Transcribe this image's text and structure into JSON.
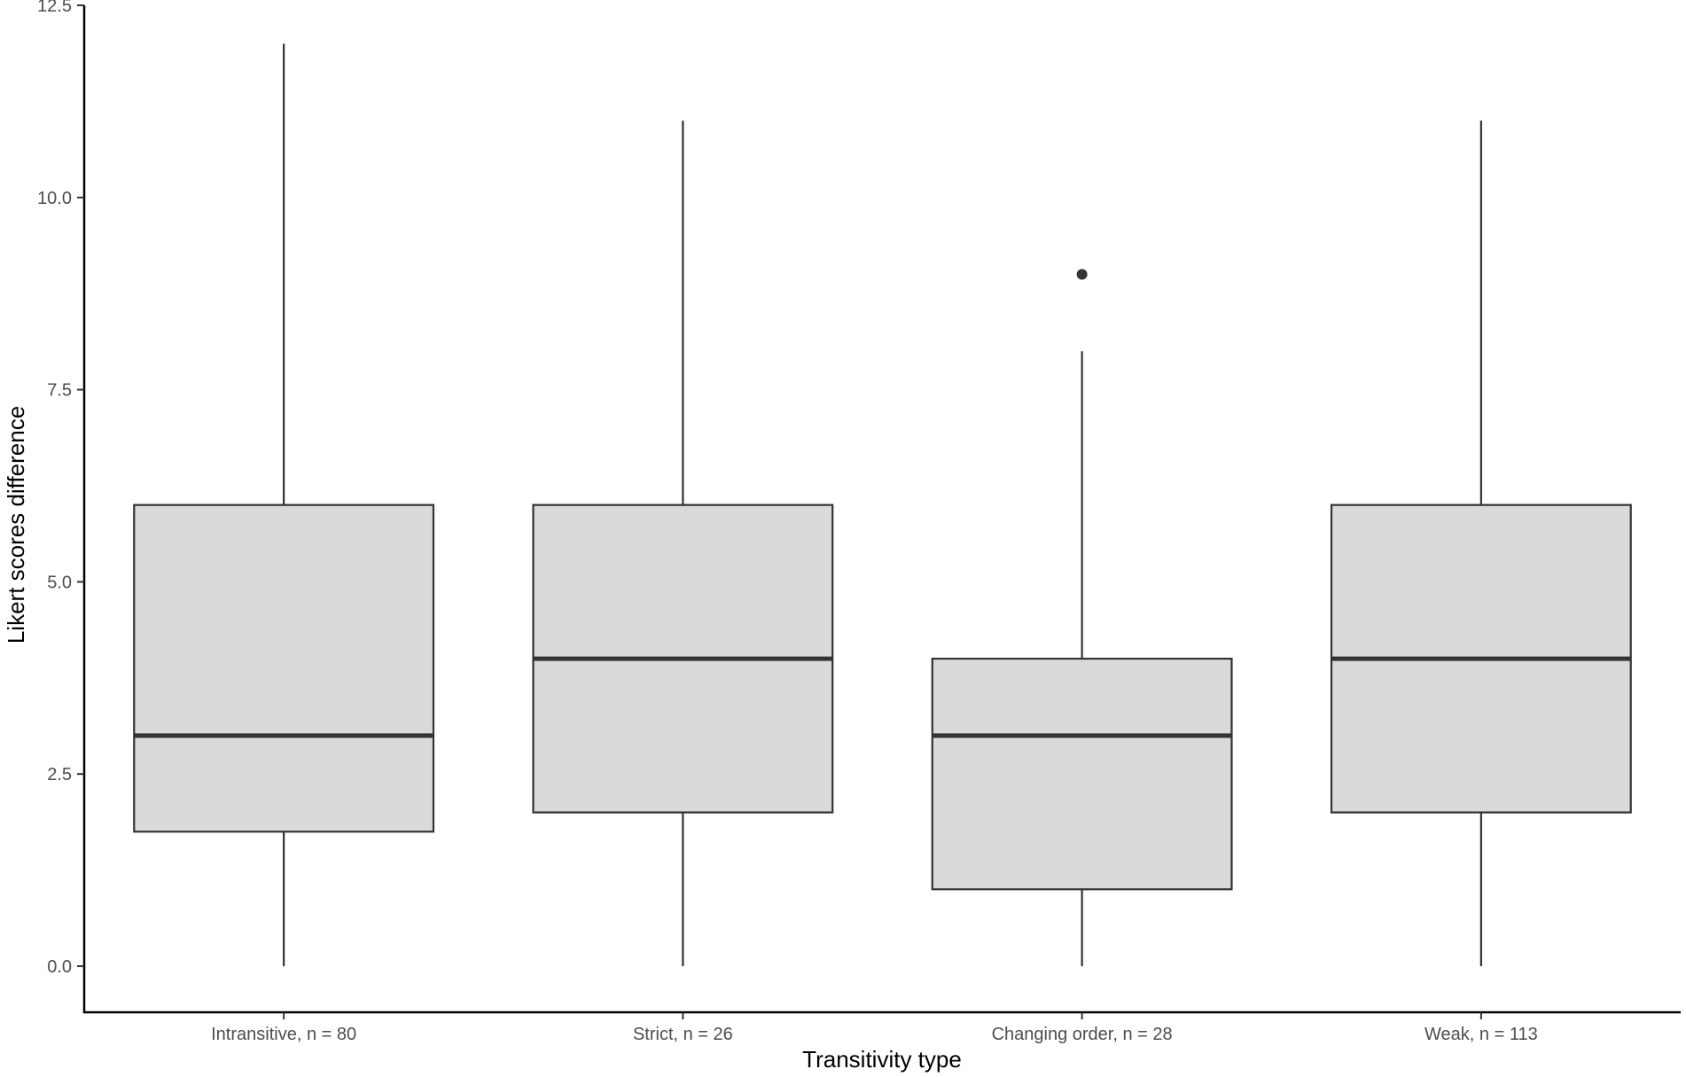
{
  "chart_data": {
    "type": "boxplot",
    "title": "",
    "xlabel": "Transitivity type",
    "ylabel": "Likert scores difference",
    "ylim": [
      -0.6,
      12.5
    ],
    "yticks": [
      0.0,
      2.5,
      5.0,
      7.5,
      10.0,
      12.5
    ],
    "ytick_labels": [
      "0.0",
      "2.5",
      "5.0",
      "7.5",
      "10.0",
      "12.5"
    ],
    "grid": false,
    "legend": "none",
    "box_fill": "#d9dbdb",
    "line_color": "#333333",
    "categories": [
      "Intransitive, n = 80",
      "Strict, n = 26",
      "Changing order, n = 28",
      "Weak, n = 113"
    ],
    "boxes": [
      {
        "category": "Intransitive, n = 80",
        "whisker_low": 0,
        "q1": 1.75,
        "median": 3,
        "q3": 6,
        "whisker_high": 12,
        "outliers": []
      },
      {
        "category": "Strict, n = 26",
        "whisker_low": 0,
        "q1": 2,
        "median": 4,
        "q3": 6,
        "whisker_high": 11,
        "outliers": []
      },
      {
        "category": "Changing order, n = 28",
        "whisker_low": 0,
        "q1": 1,
        "median": 3,
        "q3": 4,
        "whisker_high": 8,
        "outliers": [
          9
        ]
      },
      {
        "category": "Weak, n = 113",
        "whisker_low": 0,
        "q1": 2,
        "median": 4,
        "q3": 6,
        "whisker_high": 11,
        "outliers": []
      }
    ]
  }
}
